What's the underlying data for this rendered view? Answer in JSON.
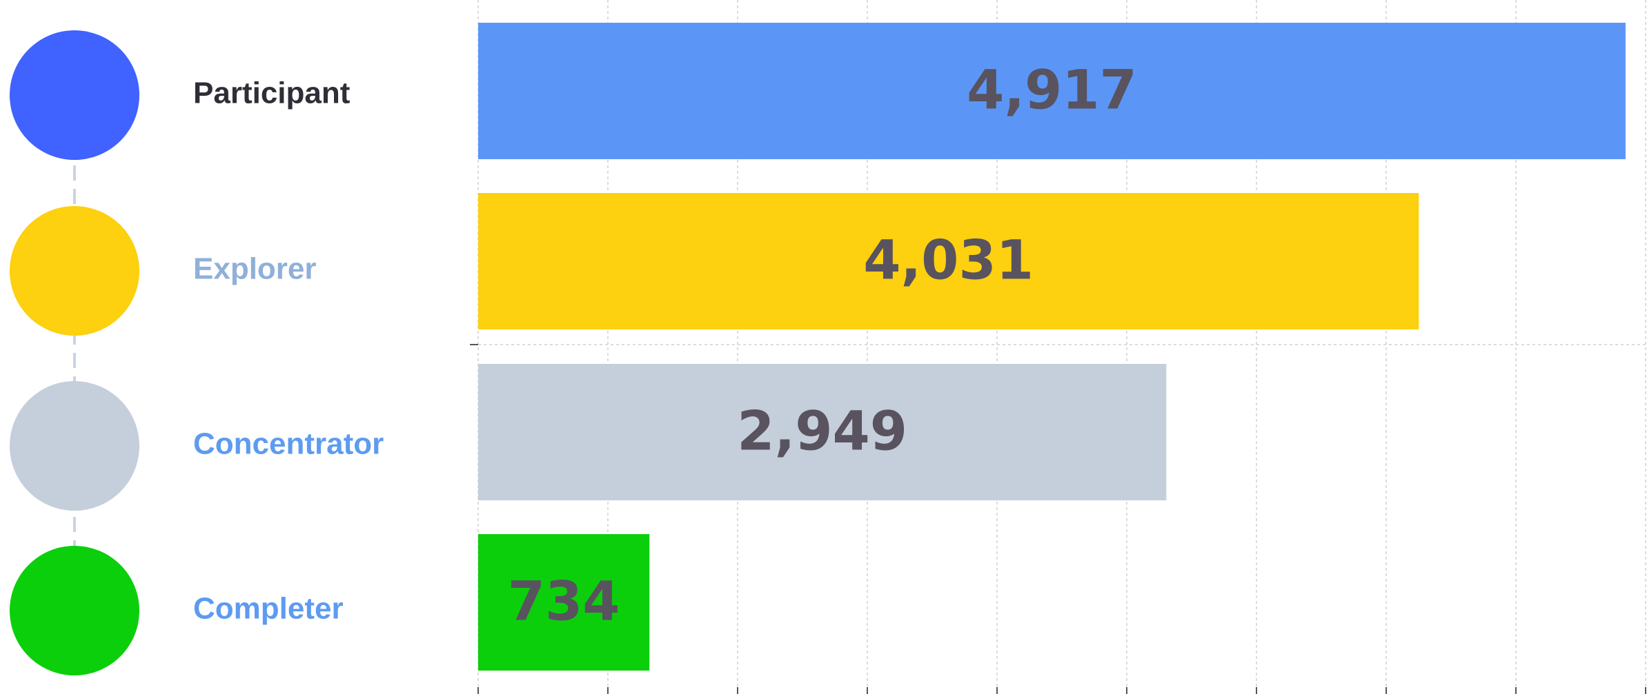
{
  "chart_data": {
    "type": "bar",
    "orientation": "horizontal",
    "categories": [
      "Participant",
      "Explorer",
      "Concentrator",
      "Completer"
    ],
    "values": [
      4917,
      4031,
      2949,
      734
    ],
    "value_labels": [
      "4,917",
      "4,031",
      "2,949",
      "734"
    ],
    "colors": [
      "#5b96f7",
      "#fdd010",
      "#c5cfdb",
      "#0ccf0c"
    ],
    "legend_colors": [
      "#4062ff",
      "#fdd010",
      "#c5cfdb",
      "#0ccf0c"
    ],
    "label_colors": [
      "#2e2e38",
      "#8fb0d8",
      "#5d9bf0",
      "#5d9bf0"
    ],
    "xlim": [
      0,
      5000
    ],
    "grid": true
  }
}
